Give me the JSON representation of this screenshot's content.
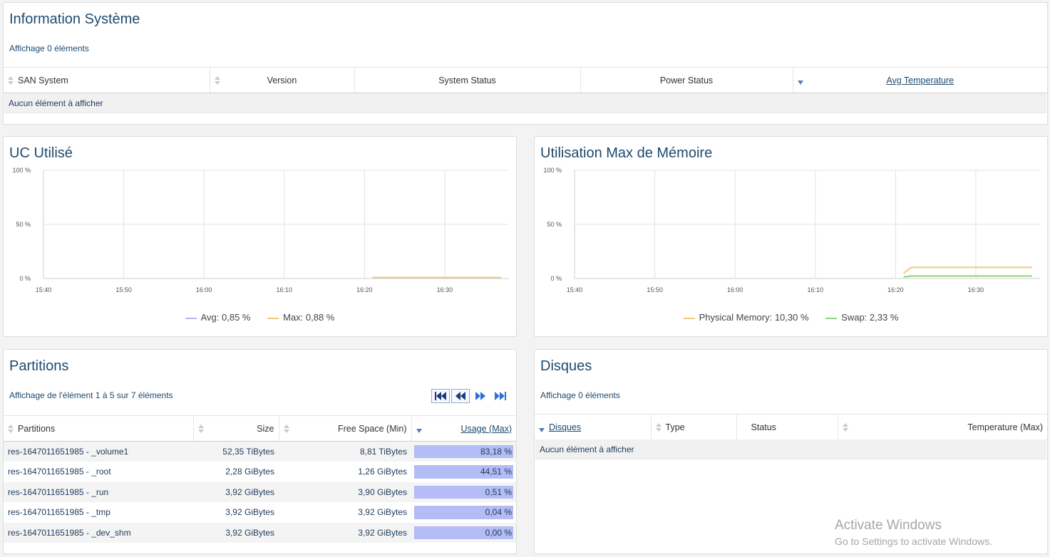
{
  "system_info": {
    "title": "Information Système",
    "count_text": "Affichage 0 éléments",
    "columns": [
      "SAN System",
      "Version",
      "System Status",
      "Power Status",
      "Avg Temperature"
    ],
    "empty_text": "Aucun élément à afficher"
  },
  "cpu": {
    "title": "UC Utilisé",
    "legend": [
      {
        "label": "Avg: 0,85 %",
        "color": "#a9bce6"
      },
      {
        "label": "Max: 0,88 %",
        "color": "#f3c97a"
      }
    ]
  },
  "memory": {
    "title": "Utilisation Max de Mémoire",
    "legend": [
      {
        "label": "Physical Memory: 10,30 %",
        "color": "#f3c97a"
      },
      {
        "label": "Swap: 2,33 %",
        "color": "#8fd17a"
      }
    ]
  },
  "chart_data": [
    {
      "type": "line",
      "title": "UC Utilisé",
      "x_ticks": [
        "15:40",
        "15:50",
        "16:00",
        "16:10",
        "16:20",
        "16:30"
      ],
      "y_ticks": [
        "0 %",
        "50 %",
        "100 %"
      ],
      "ylim": [
        0,
        100
      ],
      "xlim": [
        "15:40",
        "16:38"
      ],
      "grid": true,
      "legend_placement": "bottom",
      "series": [
        {
          "name": "Avg",
          "color": "#a9bce6",
          "x": [
            "16:21",
            "16:37"
          ],
          "values": [
            0.85,
            0.85
          ]
        },
        {
          "name": "Max",
          "color": "#f3c97a",
          "x": [
            "16:21",
            "16:37"
          ],
          "values": [
            0.88,
            0.88
          ]
        }
      ]
    },
    {
      "type": "line",
      "title": "Utilisation Max de Mémoire",
      "x_ticks": [
        "15:40",
        "15:50",
        "16:00",
        "16:10",
        "16:20",
        "16:30"
      ],
      "y_ticks": [
        "0 %",
        "50 %",
        "100 %"
      ],
      "ylim": [
        0,
        100
      ],
      "xlim": [
        "15:40",
        "16:38"
      ],
      "grid": true,
      "legend_placement": "bottom",
      "series": [
        {
          "name": "Physical Memory",
          "color": "#f3c97a",
          "x": [
            "16:21",
            "16:22",
            "16:37"
          ],
          "values": [
            5,
            10.3,
            10.3
          ]
        },
        {
          "name": "Swap",
          "color": "#8fd17a",
          "x": [
            "16:21",
            "16:22",
            "16:37"
          ],
          "values": [
            1.5,
            2.33,
            2.33
          ]
        }
      ]
    }
  ],
  "partitions": {
    "title": "Partitions",
    "count_text": "Affichage de l'élément 1 à 5 sur 7 éléments",
    "columns": [
      "Partitions",
      "Size",
      "Free Space (Min)",
      "Usage (Max)"
    ],
    "rows": [
      {
        "name": "res-1647011651985 - _volume1",
        "size": "52,35 TiBytes",
        "free": "8,81 TiBytes",
        "usage": "83,18 %",
        "usage_value": 83.18
      },
      {
        "name": "res-1647011651985 - _root",
        "size": "2,28 GiBytes",
        "free": "1,26 GiBytes",
        "usage": "44,51 %",
        "usage_value": 44.51
      },
      {
        "name": "res-1647011651985 - _run",
        "size": "3,92 GiBytes",
        "free": "3,90 GiBytes",
        "usage": "0,51 %",
        "usage_value": 0.51
      },
      {
        "name": "res-1647011651985 - _tmp",
        "size": "3,92 GiBytes",
        "free": "3,92 GiBytes",
        "usage": "0,04 %",
        "usage_value": 0.04
      },
      {
        "name": "res-1647011651985 - _dev_shm",
        "size": "3,92 GiBytes",
        "free": "3,92 GiBytes",
        "usage": "0,00 %",
        "usage_value": 0.0
      }
    ],
    "pager_icons": [
      "first-page-icon",
      "previous-page-icon",
      "next-page-icon",
      "last-page-icon"
    ]
  },
  "disks": {
    "title": "Disques",
    "count_text": "Affichage 0 éléments",
    "columns": [
      "Disques",
      "Type",
      "Status",
      "Temperature (Max)"
    ],
    "empty_text": "Aucun élément à afficher"
  },
  "watermark": {
    "title": "Activate Windows",
    "subtitle": "Go to Settings to activate Windows."
  }
}
